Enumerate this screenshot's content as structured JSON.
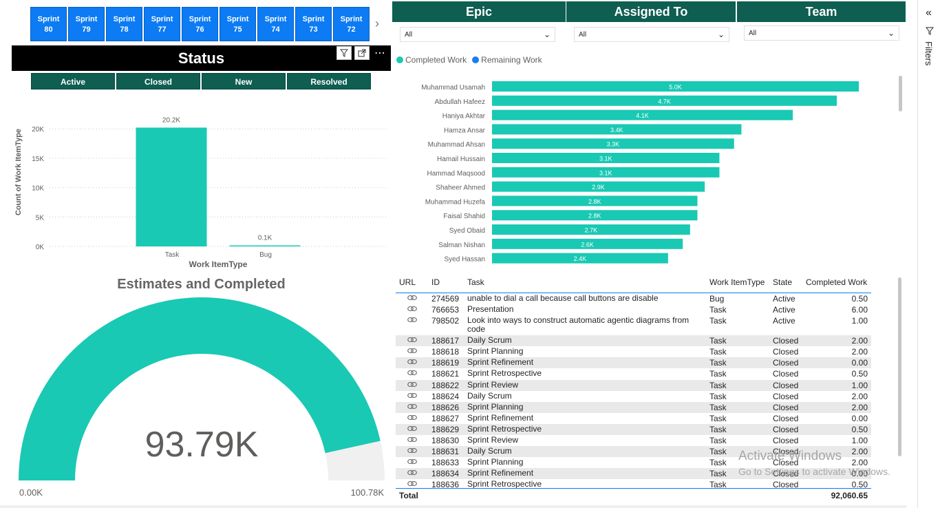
{
  "sprints": [
    {
      "line1": "Sprint",
      "line2": "80"
    },
    {
      "line1": "Sprint",
      "line2": "79"
    },
    {
      "line1": "Sprint",
      "line2": "78"
    },
    {
      "line1": "Sprint",
      "line2": "77"
    },
    {
      "line1": "Sprint",
      "line2": "76"
    },
    {
      "line1": "Sprint",
      "line2": "75"
    },
    {
      "line1": "Sprint",
      "line2": "74"
    },
    {
      "line1": "Sprint",
      "line2": "73"
    },
    {
      "line1": "Sprint",
      "line2": "72"
    }
  ],
  "status": {
    "title": "Status",
    "tiles": [
      "Active",
      "Closed",
      "New",
      "Resolved"
    ]
  },
  "filters": {
    "epic": {
      "title": "Epic",
      "value": "All"
    },
    "assigned_to": {
      "title": "Assigned To",
      "value": "All"
    },
    "team": {
      "title": "Team",
      "value": "All"
    }
  },
  "gauge": {
    "title": "Estimates and Completed",
    "value_label": "93.79K",
    "min_label": "0.00K",
    "max_label": "100.78K",
    "value": 93.79,
    "max": 100.78
  },
  "colors": {
    "teal": "#19c9b3",
    "sprint_blue": "#0c7bf4",
    "dark_green": "#0e5e51",
    "remaining_blue": "#1a7cf2"
  },
  "chart_data": [
    {
      "type": "bar",
      "categories": [
        "Task",
        "Bug"
      ],
      "values": [
        20200,
        100
      ],
      "data_labels": [
        "20.2K",
        "0.1K"
      ],
      "xlabel": "Work ItemType",
      "ylabel": "Count of Work ItemType",
      "yticks": [
        "0K",
        "5K",
        "10K",
        "15K",
        "20K"
      ],
      "ylim": [
        0,
        22000
      ]
    },
    {
      "type": "bar",
      "orientation": "horizontal",
      "legend": [
        "Completed Work",
        "Remaining Work"
      ],
      "categories": [
        "Muhammad Usamah",
        "Abdullah Hafeez",
        "Haniya Akhtar",
        "Hamza Ansar",
        "Muhammad Ahsan",
        "Hamail Hussain",
        "Hammad Maqsood",
        "Shaheer Ahmed",
        "Muhammad Huzefa",
        "Faisal Shahid",
        "Syed Obaid",
        "Salman Nishan",
        "Syed Hassan"
      ],
      "series": [
        {
          "name": "Completed Work",
          "values": [
            5.0,
            4.7,
            4.1,
            3.4,
            3.3,
            3.1,
            3.1,
            2.9,
            2.8,
            2.8,
            2.7,
            2.6,
            2.4
          ]
        }
      ],
      "data_labels": [
        "5.0K",
        "4.7K",
        "4.1K",
        "3.4K",
        "3.3K",
        "3.1K",
        "3.1K",
        "2.9K",
        "2.8K",
        "2.8K",
        "2.7K",
        "2.6K",
        "2.4K"
      ]
    }
  ],
  "table": {
    "headers": [
      "URL",
      "ID",
      "Task",
      "Work ItemType",
      "State",
      "Completed Work"
    ],
    "rows": [
      {
        "id": "274569",
        "task": "unable to dial a call because call buttons are disable",
        "type": "Bug",
        "state": "Active",
        "completed": "0.50"
      },
      {
        "id": "766653",
        "task": "Presentation",
        "type": "Task",
        "state": "Active",
        "completed": "6.00"
      },
      {
        "id": "798502",
        "task": "Look into ways to construct automatic agentic diagrams from code",
        "type": "Task",
        "state": "Active",
        "completed": "1.00"
      },
      {
        "id": "188617",
        "task": "Daily Scrum",
        "type": "Task",
        "state": "Closed",
        "completed": "2.00"
      },
      {
        "id": "188618",
        "task": "Sprint Planning",
        "type": "Task",
        "state": "Closed",
        "completed": "2.00"
      },
      {
        "id": "188619",
        "task": "Sprint Refinement",
        "type": "Task",
        "state": "Closed",
        "completed": "0.00"
      },
      {
        "id": "188621",
        "task": "Sprint Retrospective",
        "type": "Task",
        "state": "Closed",
        "completed": "0.50"
      },
      {
        "id": "188622",
        "task": "Sprint Review",
        "type": "Task",
        "state": "Closed",
        "completed": "1.00"
      },
      {
        "id": "188624",
        "task": "Daily Scrum",
        "type": "Task",
        "state": "Closed",
        "completed": "2.00"
      },
      {
        "id": "188626",
        "task": "Sprint Planning",
        "type": "Task",
        "state": "Closed",
        "completed": "2.00"
      },
      {
        "id": "188627",
        "task": "Sprint Refinement",
        "type": "Task",
        "state": "Closed",
        "completed": "0.00"
      },
      {
        "id": "188629",
        "task": "Sprint Retrospective",
        "type": "Task",
        "state": "Closed",
        "completed": "0.50"
      },
      {
        "id": "188630",
        "task": "Sprint Review",
        "type": "Task",
        "state": "Closed",
        "completed": "1.00"
      },
      {
        "id": "188631",
        "task": "Daily Scrum",
        "type": "Task",
        "state": "Closed",
        "completed": "2.00"
      },
      {
        "id": "188633",
        "task": "Sprint Planning",
        "type": "Task",
        "state": "Closed",
        "completed": "2.00"
      },
      {
        "id": "188634",
        "task": "Sprint Refinement",
        "type": "Task",
        "state": "Closed",
        "completed": "0.00"
      },
      {
        "id": "188636",
        "task": "Sprint Retrospective",
        "type": "Task",
        "state": "Closed",
        "completed": "0.50"
      }
    ],
    "total_label": "Total",
    "total_value": "92,060.65"
  },
  "filters_pane": {
    "label": "Filters"
  },
  "watermark": {
    "line1": "Activate Windows",
    "line2": "Go to Settings to activate Windows."
  }
}
